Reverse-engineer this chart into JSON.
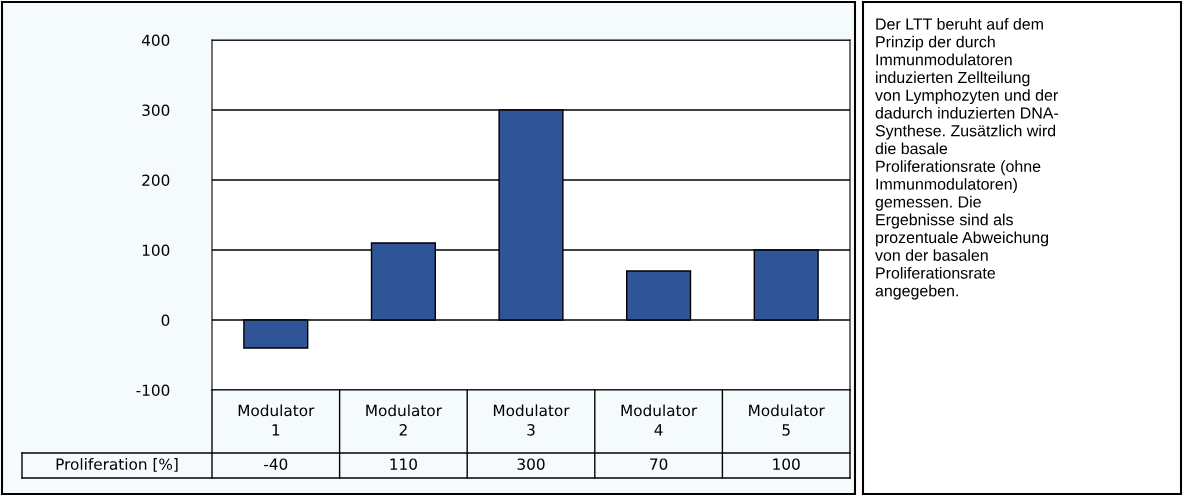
{
  "chart_data": {
    "type": "bar",
    "categories": [
      "Modulator 1",
      "Modulator 2",
      "Modulator 3",
      "Modulator 4",
      "Modulator 5"
    ],
    "series": [
      {
        "name": "Proliferation [%]",
        "color": "#2f5597",
        "values": [
          -40,
          110,
          300,
          70,
          100
        ]
      }
    ],
    "ylim": [
      -100,
      400
    ],
    "yticks": [
      -100,
      0,
      100,
      200,
      300,
      400
    ],
    "grid": "y",
    "data_labels": true,
    "annotations": [
      "Der LTT beruht auf dem\nPrinzip der durch\nImmunmodulatoren\ninduzierten Zellteilung\nvon Lymphozyten und der\ndadurch induzierten DNA-\nSynthese. Zusätzlich wird\ndie basale\nProliferationsrate (ohne\nImmunmodulatoren)\ngemessen. Die\nErgebnisse sind als\nprozentuale Abweichung\nvon der basalen\nProliferationsrate\nangegeben."
    ]
  }
}
